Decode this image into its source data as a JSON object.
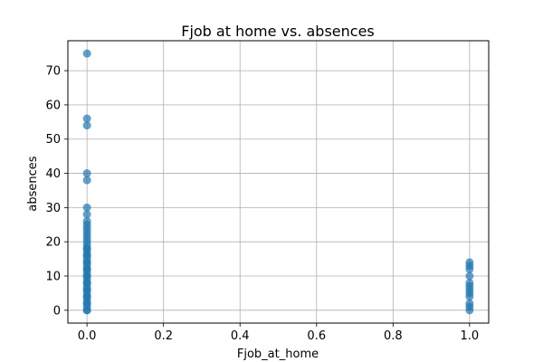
{
  "chart_data": {
    "type": "scatter",
    "title": "Fjob at home vs. absences",
    "xlabel": "Fjob_at_home",
    "ylabel": "absences",
    "xlim": [
      -0.05,
      1.05
    ],
    "ylim": [
      -3.75,
      78.75
    ],
    "xticks": [
      0.0,
      0.2,
      0.4,
      0.6,
      0.8,
      1.0
    ],
    "xtick_labels": [
      "0.0",
      "0.2",
      "0.4",
      "0.6",
      "0.8",
      "1.0"
    ],
    "yticks": [
      0,
      10,
      20,
      30,
      40,
      50,
      60,
      70
    ],
    "ytick_labels": [
      "0",
      "10",
      "20",
      "30",
      "40",
      "50",
      "60",
      "70"
    ],
    "grid": true,
    "marker_color": "#1f77b4",
    "series": [
      {
        "x": [
          0,
          0,
          0,
          0,
          0,
          0,
          0,
          0,
          0,
          0,
          0,
          0,
          0,
          0,
          0,
          0,
          0,
          0,
          0,
          0,
          0,
          0,
          0,
          0,
          0,
          0,
          0,
          0,
          0,
          0,
          0,
          0,
          0,
          0,
          0,
          0,
          0,
          0,
          0,
          0,
          0,
          0,
          0,
          0,
          1,
          1,
          1,
          1,
          1,
          1,
          1,
          1,
          1,
          1,
          1,
          1
        ],
        "y": [
          0,
          1,
          2,
          3,
          4,
          5,
          6,
          7,
          8,
          9,
          10,
          11,
          12,
          13,
          14,
          15,
          16,
          17,
          18,
          19,
          20,
          21,
          22,
          23,
          24,
          25,
          26,
          28,
          30,
          38,
          40,
          54,
          56,
          75,
          0,
          2,
          4,
          6,
          8,
          10,
          12,
          14,
          16,
          18,
          0,
          1,
          2,
          4,
          5,
          6,
          7,
          8,
          10,
          12,
          13,
          14
        ]
      }
    ]
  }
}
